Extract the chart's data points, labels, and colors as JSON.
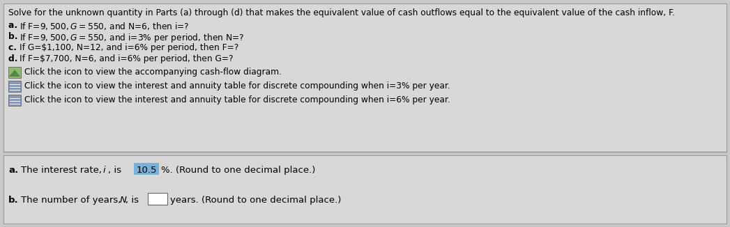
{
  "bg_color": "#c8c8c8",
  "panel_color": "#d8d8d8",
  "title_line": "Solve for the unknown quantity in Parts (a) through (d) that makes the equivalent value of cash outflows equal to the equivalent value of the cash inflow, F.",
  "line_a": "If F=$9,500, G=$550, and N=6, then i=?",
  "line_b": "If F=$9,500, G=$550, and i=3% per period, then N=?",
  "line_c": "If G=$1,100, N=12, and i=6% per period, then F=?",
  "line_d": "If F=$7,700, N=6, and i=6% per period, then G=?",
  "click1": "Click the icon to view the accompanying cash-flow diagram.",
  "click2": "Click the icon to view the interest and annuity table for discrete compounding when i=3% per year.",
  "click3": "Click the icon to view the interest and annuity table for discrete compounding when i=6% per year.",
  "ans_a_pre": "a. The interest rate, ",
  "ans_a_i": "i",
  "ans_a_mid": ", is ",
  "ans_a_val": "10.5",
  "ans_a_post": "%. (Round to one decimal place.)",
  "ans_b_pre": "b. The number of years, ",
  "ans_b_N": "N",
  "ans_b_mid": ", is ",
  "ans_b_post": "years. (Round to one decimal place.)",
  "highlight_color": "#7ab0d8",
  "icon1_color_top": "#8aaa78",
  "icon1_color_bot": "#6a9a58",
  "icon2_color": "#7888a0",
  "icon3_color": "#7888a0",
  "font_size": 8.8,
  "font_size_answer": 9.5
}
